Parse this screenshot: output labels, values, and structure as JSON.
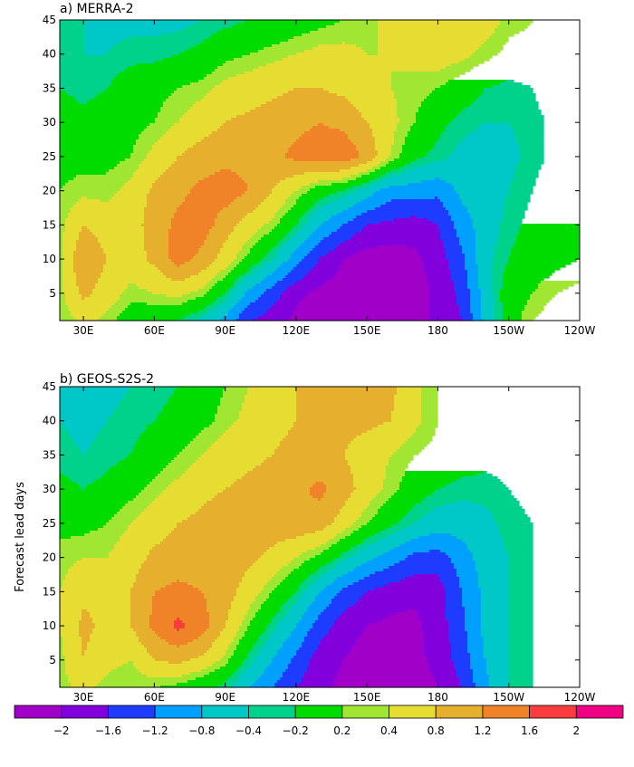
{
  "chart_data": [
    {
      "type": "heatmap",
      "panel": "a",
      "title": "a) MERRA-2",
      "xlabel": "",
      "ylabel": "",
      "x_ticks": [
        "30E",
        "60E",
        "90E",
        "120E",
        "150E",
        "180",
        "150W",
        "120W"
      ],
      "y_ticks": [
        5,
        10,
        15,
        20,
        25,
        30,
        35,
        40,
        45
      ],
      "xlim": [
        "20E",
        "120W"
      ],
      "ylim": [
        1,
        45
      ],
      "x_lon": [
        20,
        30,
        40,
        50,
        60,
        70,
        80,
        90,
        100,
        110,
        120,
        130,
        140,
        150,
        160,
        170,
        180,
        190,
        200,
        210,
        220,
        230,
        240
      ],
      "y_lead": [
        1,
        5,
        10,
        15,
        20,
        25,
        30,
        35,
        40,
        45
      ],
      "z": [
        [
          0.2,
          0.5,
          0.3,
          0.0,
          -0.1,
          -0.2,
          -0.5,
          -0.9,
          -1.6,
          -1.8,
          -2.1,
          -2.3,
          -2.3,
          -2.3,
          -2.3,
          -2.2,
          -1.9,
          -1.6,
          -0.7,
          0.0,
          0.4,
          0.6,
          0.7
        ],
        [
          0.3,
          0.9,
          0.6,
          0.3,
          0.4,
          0.5,
          0.3,
          -0.2,
          -0.9,
          -1.4,
          -1.9,
          -2.1,
          -2.2,
          -2.3,
          -2.3,
          -2.2,
          -1.9,
          -1.5,
          -0.6,
          0.0,
          0.2,
          0.4,
          0.5
        ],
        [
          0.3,
          1.2,
          0.8,
          0.6,
          0.9,
          1.4,
          1.1,
          0.6,
          0.1,
          -0.4,
          -1.0,
          -1.6,
          -2.0,
          -2.2,
          -2.2,
          -2.1,
          -1.8,
          -1.3,
          -0.5,
          -0.2,
          0.0,
          0.1,
          0.2
        ],
        [
          0.3,
          0.8,
          0.6,
          0.6,
          1.0,
          1.3,
          1.4,
          1.0,
          0.6,
          0.3,
          -0.2,
          -0.8,
          -1.2,
          -1.6,
          -1.7,
          -1.8,
          -1.6,
          -1.0,
          -0.6,
          -0.3,
          -0.1,
          0.1,
          0.2
        ],
        [
          0.2,
          0.3,
          0.3,
          0.5,
          0.9,
          1.1,
          1.3,
          1.4,
          1.2,
          0.8,
          0.4,
          0.0,
          -0.2,
          -0.6,
          -1.0,
          -1.0,
          -1.1,
          -0.7,
          -0.6,
          -0.4,
          -0.2,
          0.0,
          0.1
        ],
        [
          0.1,
          0.1,
          0.1,
          0.2,
          0.5,
          0.8,
          1.0,
          1.1,
          1.1,
          1.1,
          1.3,
          1.4,
          1.5,
          1.1,
          0.4,
          -0.1,
          -0.3,
          -0.5,
          -0.6,
          -0.5,
          -0.3,
          -0.1,
          0.1
        ],
        [
          0.0,
          -0.1,
          0.0,
          0.1,
          0.2,
          0.4,
          0.6,
          0.8,
          0.9,
          1.0,
          1.1,
          1.2,
          1.1,
          0.8,
          0.5,
          0.2,
          -0.1,
          -0.3,
          -0.4,
          -0.4,
          -0.3,
          -0.1,
          0.1
        ],
        [
          -0.2,
          -0.3,
          -0.2,
          0.0,
          0.1,
          0.2,
          0.3,
          0.5,
          0.6,
          0.7,
          0.8,
          0.8,
          0.7,
          0.5,
          0.4,
          0.3,
          0.2,
          0.0,
          -0.2,
          -0.3,
          -0.2,
          0.0,
          0.1
        ],
        [
          -0.3,
          -0.4,
          -0.4,
          -0.3,
          -0.3,
          -0.2,
          -0.1,
          0.1,
          0.2,
          0.3,
          0.4,
          0.5,
          0.5,
          0.4,
          0.4,
          0.5,
          0.6,
          0.5,
          0.3,
          0.1,
          0.1,
          0.1,
          0.1
        ],
        [
          -0.3,
          -0.4,
          -0.5,
          -0.5,
          -0.5,
          -0.5,
          -0.4,
          -0.3,
          -0.2,
          -0.1,
          0.0,
          0.1,
          0.2,
          0.3,
          0.5,
          0.6,
          0.8,
          0.8,
          0.6,
          0.3,
          0.2,
          0.1,
          0.1
        ]
      ]
    },
    {
      "type": "heatmap",
      "panel": "b",
      "title": "b) GEOS-S2S-2",
      "xlabel": "",
      "ylabel": "Forecast lead days",
      "x_ticks": [
        "30E",
        "60E",
        "90E",
        "120E",
        "150E",
        "180",
        "150W",
        "120W"
      ],
      "y_ticks": [
        5,
        10,
        15,
        20,
        25,
        30,
        35,
        40,
        45
      ],
      "xlim": [
        "20E",
        "120W"
      ],
      "ylim": [
        1,
        45
      ],
      "x_lon": [
        20,
        30,
        40,
        50,
        60,
        70,
        80,
        90,
        100,
        110,
        120,
        130,
        140,
        150,
        160,
        170,
        180,
        190,
        200,
        210,
        220,
        230,
        240
      ],
      "y_lead": [
        1,
        5,
        10,
        15,
        20,
        25,
        30,
        35,
        40,
        45
      ],
      "z": [
        [
          0.3,
          0.5,
          0.3,
          0.2,
          0.2,
          0.1,
          -0.1,
          -0.3,
          -0.8,
          -1.2,
          -1.6,
          -1.9,
          -2.1,
          -2.2,
          -2.3,
          -2.2,
          -2.0,
          -1.6,
          -0.9,
          -0.4,
          -0.2,
          0.0,
          0.1
        ],
        [
          0.3,
          0.8,
          0.5,
          0.4,
          0.8,
          0.9,
          0.7,
          0.3,
          -0.3,
          -0.8,
          -1.3,
          -1.8,
          -2.0,
          -2.2,
          -2.2,
          -2.1,
          -1.9,
          -1.4,
          -0.8,
          -0.4,
          -0.2,
          0.0,
          0.1
        ],
        [
          0.4,
          0.9,
          0.7,
          0.8,
          1.3,
          1.7,
          1.4,
          0.8,
          0.2,
          -0.3,
          -0.8,
          -1.4,
          -1.8,
          -2.0,
          -2.1,
          -2.1,
          -1.8,
          -1.3,
          -0.7,
          -0.4,
          -0.2,
          0.0,
          0.1
        ],
        [
          0.4,
          0.7,
          0.7,
          0.8,
          1.2,
          1.3,
          1.2,
          1.0,
          0.6,
          0.2,
          -0.2,
          -0.8,
          -1.3,
          -1.6,
          -1.8,
          -1.9,
          -1.8,
          -1.2,
          -0.7,
          -0.4,
          -0.2,
          0.0,
          0.1
        ],
        [
          0.3,
          0.4,
          0.4,
          0.6,
          0.9,
          1.0,
          1.0,
          1.0,
          0.9,
          0.7,
          0.4,
          0.1,
          -0.3,
          -0.7,
          -1.0,
          -1.3,
          -1.4,
          -1.0,
          -0.6,
          -0.4,
          -0.2,
          0.0,
          0.1
        ],
        [
          0.1,
          0.1,
          0.2,
          0.4,
          0.6,
          0.8,
          0.9,
          1.0,
          1.0,
          1.0,
          1.1,
          1.0,
          0.6,
          0.2,
          -0.1,
          -0.4,
          -0.6,
          -0.6,
          -0.5,
          -0.3,
          -0.2,
          0.0,
          0.1
        ],
        [
          -0.1,
          -0.2,
          -0.1,
          0.1,
          0.3,
          0.5,
          0.7,
          0.8,
          0.9,
          1.0,
          1.1,
          1.3,
          1.0,
          0.6,
          0.3,
          0.0,
          -0.2,
          -0.3,
          -0.3,
          -0.2,
          -0.1,
          0.0,
          0.1
        ],
        [
          -0.3,
          -0.4,
          -0.3,
          -0.2,
          0.0,
          0.2,
          0.4,
          0.6,
          0.7,
          0.8,
          0.9,
          0.9,
          0.8,
          0.6,
          0.4,
          0.2,
          0.1,
          0.0,
          -0.1,
          -0.1,
          0.0,
          0.1,
          0.1
        ],
        [
          -0.4,
          -0.5,
          -0.4,
          -0.3,
          -0.2,
          -0.1,
          0.1,
          0.3,
          0.5,
          0.7,
          0.8,
          0.9,
          0.9,
          0.9,
          0.8,
          0.5,
          0.2,
          0.1,
          0.0,
          0.0,
          0.1,
          0.1,
          0.1
        ],
        [
          -0.4,
          -0.5,
          -0.5,
          -0.4,
          -0.3,
          -0.2,
          0.0,
          0.2,
          0.4,
          0.6,
          0.8,
          0.9,
          1.0,
          1.0,
          0.9,
          0.5,
          0.2,
          0.1,
          0.1,
          0.1,
          0.1,
          0.1,
          0.1
        ]
      ]
    }
  ],
  "colorbar": {
    "levels": [
      -2,
      -1.6,
      -1.2,
      -0.8,
      -0.4,
      -0.2,
      0.2,
      0.4,
      0.8,
      1.2,
      1.6,
      2
    ],
    "tick_labels": [
      "−2",
      "−1.6",
      "−1.2",
      "−0.8",
      "−0.4",
      "−0.2",
      "0.2",
      "0.4",
      "0.8",
      "1.2",
      "1.6",
      "2"
    ],
    "colors": [
      "#a000c8",
      "#8200dc",
      "#1e3cff",
      "#00a0ff",
      "#00c8c8",
      "#00d28c",
      "#00dc00",
      "#a0e632",
      "#e6dc32",
      "#e6af2d",
      "#f08228",
      "#fa3c3c",
      "#f00082"
    ]
  }
}
